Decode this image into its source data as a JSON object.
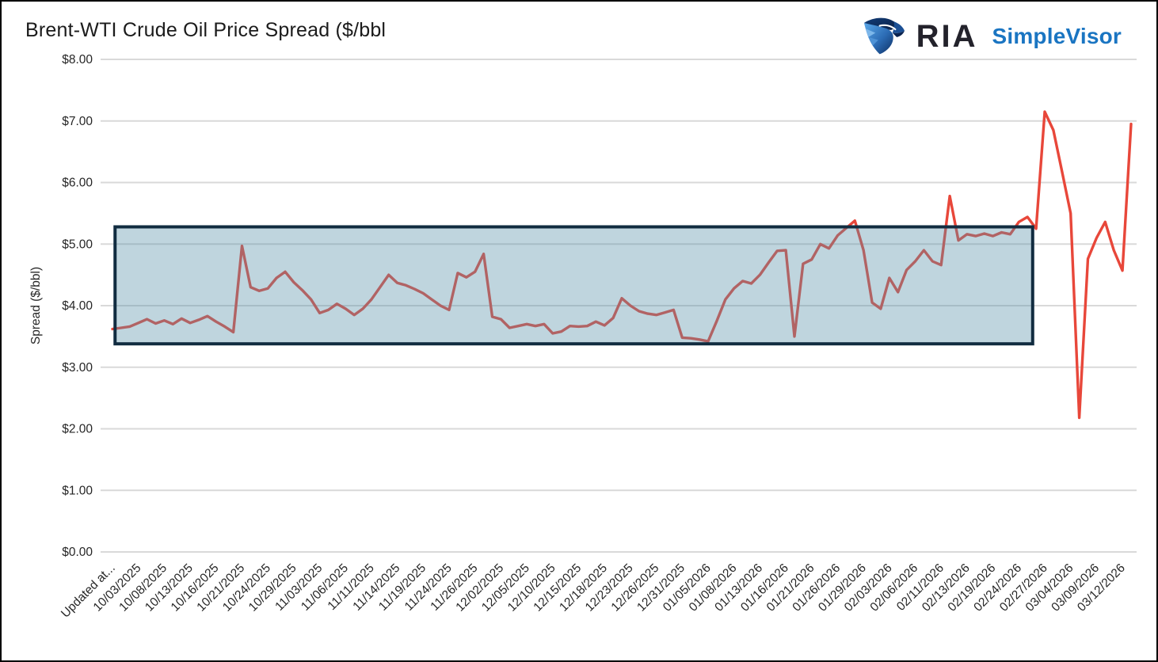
{
  "logo": {
    "brand": "RIA",
    "product": "SimpleVisor",
    "brand_color": "#23222b",
    "product_color": "#1a75c2",
    "icon": "eagle-shield-icon"
  },
  "chart_data": {
    "type": "line",
    "title": "Brent-WTI Crude Oil Price Spread ($/bbl",
    "xlabel": "",
    "ylabel": "Spread ($/bbl)",
    "ylim": [
      0,
      8
    ],
    "grid": true,
    "gridline_color": "#d9d9d9",
    "legend": "none",
    "ytick_labels": [
      "$0.00",
      "$1.00",
      "$2.00",
      "$3.00",
      "$4.00",
      "$5.00",
      "$6.00",
      "$7.00",
      "$8.00"
    ],
    "x_labels": [
      "Updated at...",
      "10/03/2025",
      "10/08/2025",
      "10/13/2025",
      "10/16/2025",
      "10/21/2025",
      "10/24/2025",
      "10/29/2025",
      "11/03/2025",
      "11/06/2025",
      "11/11/2025",
      "11/14/2025",
      "11/19/2025",
      "11/24/2025",
      "11/26/2025",
      "12/02/2025",
      "12/05/2025",
      "12/10/2025",
      "12/15/2025",
      "12/18/2025",
      "12/23/2025",
      "12/26/2025",
      "12/31/2025",
      "01/05/2026",
      "01/08/2026",
      "01/13/2026",
      "01/16/2026",
      "01/21/2026",
      "01/26/2026",
      "01/29/2026",
      "02/03/2026",
      "02/06/2026",
      "02/11/2026",
      "02/13/2026",
      "02/19/2026",
      "02/24/2026",
      "02/27/2026",
      "03/04/2026",
      "03/09/2026",
      "03/12/2026"
    ],
    "points_per_label": 3,
    "series": [
      {
        "name": "Brent-WTI spread",
        "color": "#e8473a",
        "values": [
          3.62,
          3.64,
          3.66,
          3.72,
          3.78,
          3.71,
          3.76,
          3.7,
          3.79,
          3.72,
          3.77,
          3.83,
          3.74,
          3.66,
          3.57,
          4.97,
          4.3,
          4.24,
          4.28,
          4.45,
          4.55,
          4.38,
          4.25,
          4.1,
          3.88,
          3.93,
          4.03,
          3.95,
          3.85,
          3.95,
          4.1,
          4.3,
          4.5,
          4.37,
          4.33,
          4.27,
          4.2,
          4.1,
          4.0,
          3.93,
          4.53,
          4.46,
          4.55,
          4.84,
          3.82,
          3.78,
          3.64,
          3.67,
          3.7,
          3.67,
          3.7,
          3.55,
          3.58,
          3.67,
          3.66,
          3.67,
          3.74,
          3.68,
          3.8,
          4.12,
          4.0,
          3.91,
          3.87,
          3.85,
          3.89,
          3.93,
          3.48,
          3.47,
          3.45,
          3.42,
          3.75,
          4.1,
          4.28,
          4.4,
          4.36,
          4.5,
          4.7,
          4.89,
          4.9,
          3.5,
          4.68,
          4.75,
          5.0,
          4.93,
          5.14,
          5.26,
          5.38,
          4.9,
          4.05,
          3.95,
          4.45,
          4.22,
          4.58,
          4.72,
          4.9,
          4.72,
          4.66,
          5.78,
          5.06,
          5.16,
          5.13,
          5.17,
          5.13,
          5.19,
          5.16,
          5.36,
          5.44,
          5.25,
          7.15,
          6.85,
          6.18,
          5.5,
          2.18,
          4.76,
          5.1,
          5.36,
          4.9,
          4.57,
          6.95
        ]
      }
    ],
    "annotation_box": {
      "y_min": 3.38,
      "y_max": 5.28,
      "x_start_point": 0.3,
      "x_end_point": 106.6,
      "fill": "rgba(88,144,168,0.38)",
      "border_color": "#112c40"
    }
  }
}
